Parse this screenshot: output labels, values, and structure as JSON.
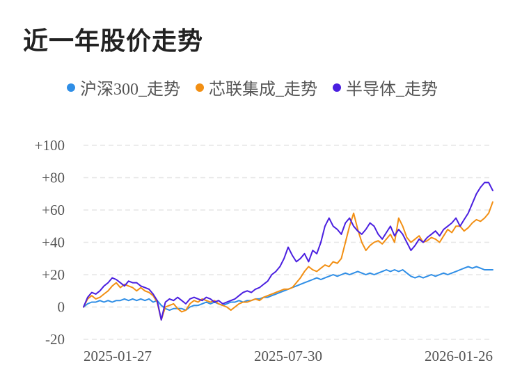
{
  "chart_data": {
    "type": "line",
    "title": "近一年股价走势",
    "xlabel": "",
    "ylabel": "",
    "ylim": [
      -20,
      100
    ],
    "grid": true,
    "legend_position": "top",
    "x_ticks": [
      "2025-01-27",
      "2025-07-30",
      "2026-01-26"
    ],
    "y_ticks": [
      "+100",
      "+80",
      "+60",
      "+40",
      "+20",
      "0",
      "-20"
    ],
    "y_tick_values": [
      100,
      80,
      60,
      40,
      20,
      0,
      -20
    ],
    "x_range": [
      0,
      100
    ],
    "x_tick_positions": [
      6,
      50,
      91
    ],
    "series": [
      {
        "name": "沪深300_走势",
        "color": "#2f8ee6",
        "points": [
          [
            0,
            0
          ],
          [
            1,
            2
          ],
          [
            2,
            3
          ],
          [
            3,
            3
          ],
          [
            4,
            4
          ],
          [
            5,
            3
          ],
          [
            6,
            4
          ],
          [
            7,
            3
          ],
          [
            8,
            4
          ],
          [
            9,
            4
          ],
          [
            10,
            5
          ],
          [
            11,
            4
          ],
          [
            12,
            5
          ],
          [
            13,
            4
          ],
          [
            14,
            5
          ],
          [
            15,
            4
          ],
          [
            16,
            5
          ],
          [
            17,
            3
          ],
          [
            18,
            4
          ],
          [
            19,
            1
          ],
          [
            20,
            -1
          ],
          [
            21,
            -2
          ],
          [
            22,
            -1
          ],
          [
            23,
            -1
          ],
          [
            24,
            -1
          ],
          [
            25,
            -2
          ],
          [
            26,
            0
          ],
          [
            27,
            1
          ],
          [
            28,
            1
          ],
          [
            29,
            2
          ],
          [
            30,
            3
          ],
          [
            31,
            2
          ],
          [
            32,
            3
          ],
          [
            33,
            2
          ],
          [
            34,
            1
          ],
          [
            35,
            2
          ],
          [
            36,
            3
          ],
          [
            37,
            3
          ],
          [
            38,
            4
          ],
          [
            39,
            3
          ],
          [
            40,
            4
          ],
          [
            41,
            4
          ],
          [
            42,
            5
          ],
          [
            43,
            5
          ],
          [
            44,
            6
          ],
          [
            45,
            6
          ],
          [
            46,
            7
          ],
          [
            47,
            8
          ],
          [
            48,
            9
          ],
          [
            49,
            10
          ],
          [
            50,
            11
          ],
          [
            51,
            12
          ],
          [
            52,
            13
          ],
          [
            53,
            14
          ],
          [
            54,
            15
          ],
          [
            55,
            16
          ],
          [
            56,
            17
          ],
          [
            57,
            18
          ],
          [
            58,
            17
          ],
          [
            59,
            18
          ],
          [
            60,
            19
          ],
          [
            61,
            20
          ],
          [
            62,
            19
          ],
          [
            63,
            20
          ],
          [
            64,
            21
          ],
          [
            65,
            20
          ],
          [
            66,
            21
          ],
          [
            67,
            22
          ],
          [
            68,
            21
          ],
          [
            69,
            20
          ],
          [
            70,
            21
          ],
          [
            71,
            20
          ],
          [
            72,
            21
          ],
          [
            73,
            22
          ],
          [
            74,
            23
          ],
          [
            75,
            22
          ],
          [
            76,
            23
          ],
          [
            77,
            22
          ],
          [
            78,
            23
          ],
          [
            79,
            21
          ],
          [
            80,
            19
          ],
          [
            81,
            18
          ],
          [
            82,
            19
          ],
          [
            83,
            18
          ],
          [
            84,
            19
          ],
          [
            85,
            20
          ],
          [
            86,
            19
          ],
          [
            87,
            20
          ],
          [
            88,
            21
          ],
          [
            89,
            20
          ],
          [
            90,
            21
          ],
          [
            91,
            22
          ],
          [
            92,
            23
          ],
          [
            93,
            24
          ],
          [
            94,
            25
          ],
          [
            95,
            24
          ],
          [
            96,
            25
          ],
          [
            97,
            24
          ],
          [
            98,
            23
          ],
          [
            99,
            23
          ],
          [
            100,
            23
          ]
        ]
      },
      {
        "name": "芯联集成_走势",
        "color": "#f28f13",
        "points": [
          [
            0,
            0
          ],
          [
            1,
            5
          ],
          [
            2,
            7
          ],
          [
            3,
            5
          ],
          [
            4,
            6
          ],
          [
            5,
            8
          ],
          [
            6,
            10
          ],
          [
            7,
            13
          ],
          [
            8,
            15
          ],
          [
            9,
            12
          ],
          [
            10,
            14
          ],
          [
            11,
            13
          ],
          [
            12,
            12
          ],
          [
            13,
            10
          ],
          [
            14,
            12
          ],
          [
            15,
            10
          ],
          [
            16,
            9
          ],
          [
            17,
            7
          ],
          [
            18,
            3
          ],
          [
            19,
            -8
          ],
          [
            20,
            0
          ],
          [
            21,
            1
          ],
          [
            22,
            2
          ],
          [
            23,
            -1
          ],
          [
            24,
            -3
          ],
          [
            25,
            -2
          ],
          [
            26,
            2
          ],
          [
            27,
            4
          ],
          [
            28,
            3
          ],
          [
            29,
            5
          ],
          [
            30,
            4
          ],
          [
            31,
            3
          ],
          [
            32,
            4
          ],
          [
            33,
            2
          ],
          [
            34,
            1
          ],
          [
            35,
            0
          ],
          [
            36,
            -2
          ],
          [
            37,
            0
          ],
          [
            38,
            2
          ],
          [
            39,
            3
          ],
          [
            40,
            3
          ],
          [
            41,
            4
          ],
          [
            42,
            5
          ],
          [
            43,
            4
          ],
          [
            44,
            6
          ],
          [
            45,
            7
          ],
          [
            46,
            8
          ],
          [
            47,
            9
          ],
          [
            48,
            10
          ],
          [
            49,
            11
          ],
          [
            50,
            11
          ],
          [
            51,
            12
          ],
          [
            52,
            15
          ],
          [
            53,
            18
          ],
          [
            54,
            22
          ],
          [
            55,
            25
          ],
          [
            56,
            23
          ],
          [
            57,
            22
          ],
          [
            58,
            24
          ],
          [
            59,
            26
          ],
          [
            60,
            25
          ],
          [
            61,
            28
          ],
          [
            62,
            27
          ],
          [
            63,
            30
          ],
          [
            64,
            40
          ],
          [
            65,
            50
          ],
          [
            66,
            58
          ],
          [
            67,
            48
          ],
          [
            68,
            40
          ],
          [
            69,
            35
          ],
          [
            70,
            38
          ],
          [
            71,
            40
          ],
          [
            72,
            41
          ],
          [
            73,
            39
          ],
          [
            74,
            42
          ],
          [
            75,
            45
          ],
          [
            76,
            40
          ],
          [
            77,
            55
          ],
          [
            78,
            50
          ],
          [
            79,
            43
          ],
          [
            80,
            40
          ],
          [
            81,
            42
          ],
          [
            82,
            44
          ],
          [
            83,
            40
          ],
          [
            84,
            41
          ],
          [
            85,
            43
          ],
          [
            86,
            42
          ],
          [
            87,
            40
          ],
          [
            88,
            44
          ],
          [
            89,
            48
          ],
          [
            90,
            46
          ],
          [
            91,
            50
          ],
          [
            92,
            50
          ],
          [
            93,
            47
          ],
          [
            94,
            49
          ],
          [
            95,
            52
          ],
          [
            96,
            54
          ],
          [
            97,
            53
          ],
          [
            98,
            55
          ],
          [
            99,
            58
          ],
          [
            100,
            65
          ]
        ]
      },
      {
        "name": "半导体_走势",
        "color": "#4a1fe0",
        "points": [
          [
            0,
            0
          ],
          [
            1,
            6
          ],
          [
            2,
            9
          ],
          [
            3,
            8
          ],
          [
            4,
            10
          ],
          [
            5,
            13
          ],
          [
            6,
            15
          ],
          [
            7,
            18
          ],
          [
            8,
            17
          ],
          [
            9,
            15
          ],
          [
            10,
            13
          ],
          [
            11,
            16
          ],
          [
            12,
            15
          ],
          [
            13,
            15
          ],
          [
            14,
            13
          ],
          [
            15,
            12
          ],
          [
            16,
            11
          ],
          [
            17,
            8
          ],
          [
            18,
            4
          ],
          [
            19,
            -8
          ],
          [
            20,
            3
          ],
          [
            21,
            5
          ],
          [
            22,
            4
          ],
          [
            23,
            6
          ],
          [
            24,
            4
          ],
          [
            25,
            2
          ],
          [
            26,
            5
          ],
          [
            27,
            6
          ],
          [
            28,
            5
          ],
          [
            29,
            4
          ],
          [
            30,
            6
          ],
          [
            31,
            5
          ],
          [
            32,
            3
          ],
          [
            33,
            4
          ],
          [
            34,
            2
          ],
          [
            35,
            3
          ],
          [
            36,
            4
          ],
          [
            37,
            5
          ],
          [
            38,
            7
          ],
          [
            39,
            9
          ],
          [
            40,
            10
          ],
          [
            41,
            9
          ],
          [
            42,
            11
          ],
          [
            43,
            12
          ],
          [
            44,
            14
          ],
          [
            45,
            16
          ],
          [
            46,
            20
          ],
          [
            47,
            22
          ],
          [
            48,
            25
          ],
          [
            49,
            30
          ],
          [
            50,
            37
          ],
          [
            51,
            32
          ],
          [
            52,
            28
          ],
          [
            53,
            30
          ],
          [
            54,
            33
          ],
          [
            55,
            28
          ],
          [
            56,
            35
          ],
          [
            57,
            33
          ],
          [
            58,
            40
          ],
          [
            59,
            50
          ],
          [
            60,
            55
          ],
          [
            61,
            50
          ],
          [
            62,
            48
          ],
          [
            63,
            45
          ],
          [
            64,
            52
          ],
          [
            65,
            55
          ],
          [
            66,
            50
          ],
          [
            67,
            47
          ],
          [
            68,
            45
          ],
          [
            69,
            48
          ],
          [
            70,
            52
          ],
          [
            71,
            50
          ],
          [
            72,
            45
          ],
          [
            73,
            42
          ],
          [
            74,
            46
          ],
          [
            75,
            50
          ],
          [
            76,
            44
          ],
          [
            77,
            48
          ],
          [
            78,
            45
          ],
          [
            79,
            40
          ],
          [
            80,
            35
          ],
          [
            81,
            38
          ],
          [
            82,
            42
          ],
          [
            83,
            40
          ],
          [
            84,
            43
          ],
          [
            85,
            45
          ],
          [
            86,
            47
          ],
          [
            87,
            44
          ],
          [
            88,
            48
          ],
          [
            89,
            50
          ],
          [
            90,
            52
          ],
          [
            91,
            55
          ],
          [
            92,
            50
          ],
          [
            93,
            54
          ],
          [
            94,
            58
          ],
          [
            95,
            64
          ],
          [
            96,
            70
          ],
          [
            97,
            74
          ],
          [
            98,
            77
          ],
          [
            99,
            77
          ],
          [
            100,
            72
          ]
        ]
      }
    ]
  }
}
